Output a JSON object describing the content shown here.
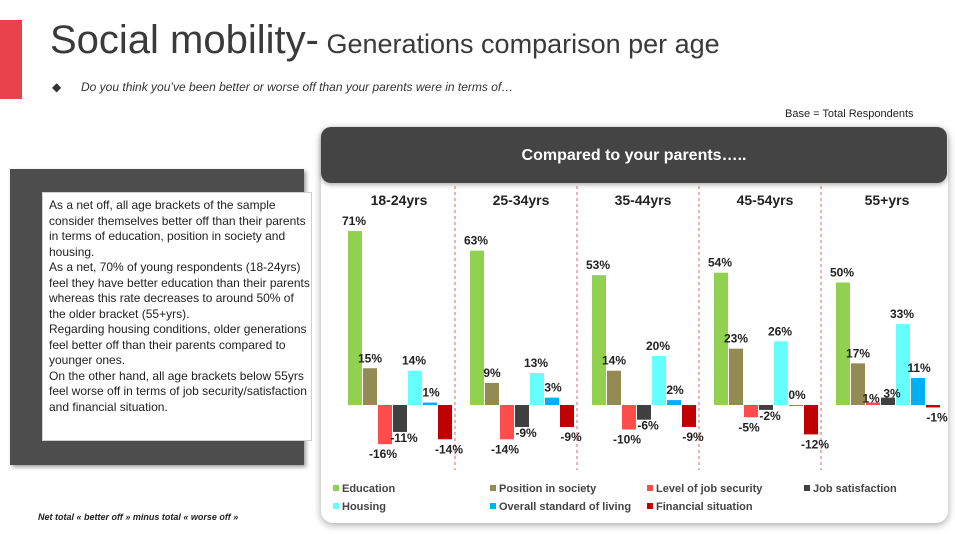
{
  "title": {
    "main": "Social mobility-",
    "sub": " Generations comparison per age"
  },
  "bullet_icon": "diamond-bullet-icon",
  "question": "Do you think you’ve been better or worse off than your parents were in terms of…",
  "base": "Base = Total Respondents",
  "note_lines": [
    "As a net off, all age brackets of the sample consider themselves better off than their parents in terms of education, position in society and housing.",
    "As a net, 70% of young respondents (18-24yrs) feel they have better education than their parents whereas this rate decreases to around 50% of the older bracket (55+yrs).",
    "Regarding housing conditions, older generations feel better off than their parents compared to younger ones.",
    "On the other hand, all age brackets below 55yrs feel worse off in terms of  job security/satisfaction and financial situation."
  ],
  "footnote": "Net total « better off » minus total « worse off »",
  "chart_data": {
    "type": "bar",
    "title": "Compared to your parents…..",
    "categories": [
      "18-24yrs",
      "25-34yrs",
      "35-44yrs",
      "45-54yrs",
      "55+yrs"
    ],
    "unit": "%",
    "series": [
      {
        "name": "Education",
        "color": "#92d050",
        "values": [
          71,
          63,
          53,
          54,
          50
        ]
      },
      {
        "name": "Position in society",
        "color": "#948a54",
        "values": [
          15,
          9,
          14,
          23,
          17
        ]
      },
      {
        "name": "Level of job security",
        "color": "#ff4c4c",
        "values": [
          -16,
          -14,
          -10,
          -5,
          1
        ]
      },
      {
        "name": "Job satisfaction",
        "color": "#404040",
        "values": [
          -11,
          -9,
          -6,
          -2,
          3
        ]
      },
      {
        "name": "Housing",
        "color": "#66ffff",
        "values": [
          14,
          13,
          20,
          26,
          33
        ]
      },
      {
        "name": "Overall standard of living",
        "color": "#00b0f0",
        "values": [
          1,
          3,
          2,
          0,
          11
        ]
      },
      {
        "name": "Financial situation",
        "color": "#c00000",
        "values": [
          -14,
          -9,
          -9,
          -12,
          -1
        ]
      }
    ],
    "legend": [
      [
        "Education",
        "Position in society",
        "Level of job security",
        "Job satisfaction"
      ],
      [
        "Housing",
        "Overall standard of living",
        "Financial situation"
      ]
    ],
    "legend_position": "bottom"
  }
}
